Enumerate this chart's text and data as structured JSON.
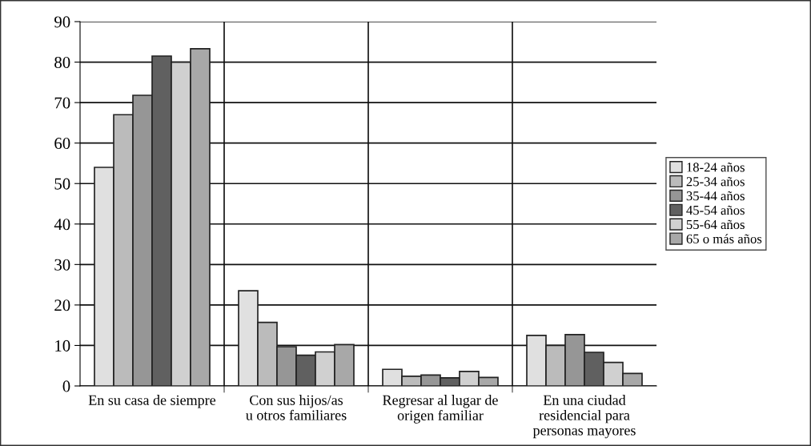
{
  "chart_data": {
    "type": "bar",
    "categories": [
      "En su casa de siempre",
      "Con sus hijos/as\nu otros familiares",
      "Regresar al lugar de\norigen familiar",
      "En una ciudad\nresidencial para\npersonas mayores"
    ],
    "series": [
      {
        "name": "18-24 años",
        "color": "#e0e0e0",
        "values": [
          54,
          23.5,
          4.1,
          12.5
        ]
      },
      {
        "name": "25-34 años",
        "color": "#bbbbbb",
        "values": [
          67,
          15.7,
          2.4,
          10.0
        ]
      },
      {
        "name": "35-44 años",
        "color": "#969696",
        "values": [
          71.8,
          9.7,
          2.7,
          12.7
        ]
      },
      {
        "name": "45-54 años",
        "color": "#606060",
        "values": [
          81.5,
          7.6,
          2.0,
          8.3
        ]
      },
      {
        "name": "55-64 años",
        "color": "#d0d0d0",
        "values": [
          80,
          8.4,
          3.6,
          5.8
        ]
      },
      {
        "name": "65 o más años",
        "color": "#a8a8a8",
        "values": [
          83.3,
          10.2,
          2.1,
          3.1
        ]
      }
    ],
    "ylim": [
      0,
      90
    ],
    "yticks": [
      0,
      10,
      20,
      30,
      40,
      50,
      60,
      70,
      80,
      90
    ],
    "grid": true,
    "legend": "right"
  }
}
